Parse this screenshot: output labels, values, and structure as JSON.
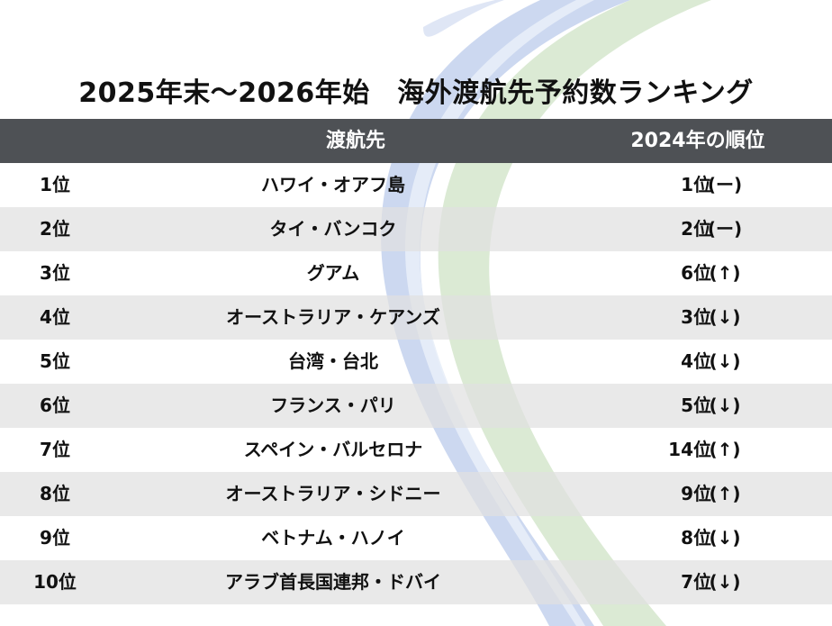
{
  "title": "2025年末～2026年始　海外渡航先予約数ランキング",
  "header": {
    "rank": "",
    "destination": "渡航先",
    "previous": "2024年の順位"
  },
  "rows": [
    {
      "rank": "1位",
      "destination": "ハワイ・オアフ島",
      "previous": "1位",
      "trend": "(ー)"
    },
    {
      "rank": "2位",
      "destination": "タイ・バンコク",
      "previous": "2位",
      "trend": "(ー)"
    },
    {
      "rank": "3位",
      "destination": "グアム",
      "previous": "6位",
      "trend": "(↑)"
    },
    {
      "rank": "4位",
      "destination": "オーストラリア・ケアンズ",
      "previous": "3位",
      "trend": "(↓)"
    },
    {
      "rank": "5位",
      "destination": "台湾・台北",
      "previous": "4位",
      "trend": "(↓)"
    },
    {
      "rank": "6位",
      "destination": "フランス・パリ",
      "previous": "5位",
      "trend": "(↓)"
    },
    {
      "rank": "7位",
      "destination": "スペイン・バルセロナ",
      "previous": "14位",
      "trend": "(↑)"
    },
    {
      "rank": "8位",
      "destination": "オーストラリア・シドニー",
      "previous": "9位",
      "trend": "(↑)"
    },
    {
      "rank": "9位",
      "destination": "ベトナム・ハノイ",
      "previous": "8位",
      "trend": "(↓)"
    },
    {
      "rank": "10位",
      "destination": "アラブ首長国連邦・ドバイ",
      "previous": "7位",
      "trend": "(↓)"
    }
  ],
  "colors": {
    "header_bg": "#4e5155",
    "header_text": "#ffffff",
    "row_alt_bg": "#e1e1e1",
    "swoosh_blue": "#aebfe6",
    "swoosh_green": "#cfe3c4"
  }
}
